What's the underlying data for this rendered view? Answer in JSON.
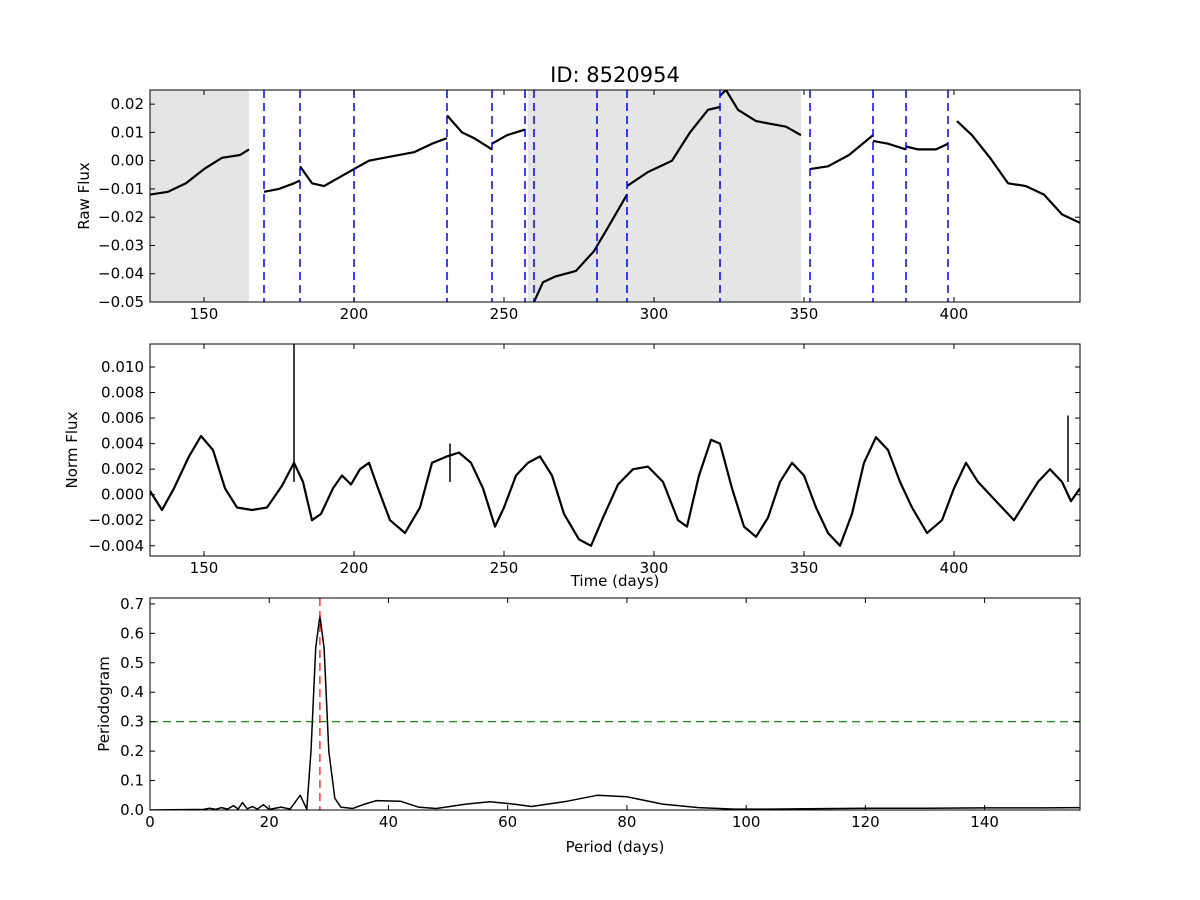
{
  "figure": {
    "title": "ID: 8520954"
  },
  "chart_data": [
    {
      "type": "line",
      "ylabel": "Raw Flux",
      "xlabel": "",
      "xlim": [
        132,
        442
      ],
      "ylim": [
        -0.05,
        0.025
      ],
      "xticks": [
        150,
        200,
        250,
        300,
        350,
        400
      ],
      "yticks": [
        -0.05,
        -0.04,
        -0.03,
        -0.02,
        -0.01,
        0.0,
        0.01,
        0.02
      ],
      "ytick_labels": [
        "−0.05",
        "−0.04",
        "−0.03",
        "−0.02",
        "−0.01",
        "0.00",
        "0.01",
        "0.02"
      ],
      "shaded_regions": [
        [
          132,
          165
        ],
        [
          258,
          349
        ]
      ],
      "break_lines": [
        170,
        182,
        200,
        231,
        246,
        257,
        260,
        281,
        291,
        322,
        352,
        373,
        384,
        398
      ],
      "series": [
        {
          "segments": [
            [
              [
                132,
                -0.012
              ],
              [
                138,
                -0.011
              ],
              [
                144,
                -0.008
              ],
              [
                150,
                -0.003
              ],
              [
                156,
                0.001
              ],
              [
                162,
                0.002
              ],
              [
                165,
                0.004
              ]
            ],
            [
              [
                170,
                -0.011
              ],
              [
                175,
                -0.01
              ],
              [
                180,
                -0.008
              ],
              [
                182,
                -0.007
              ]
            ],
            [
              [
                182,
                -0.002
              ],
              [
                186,
                -0.008
              ],
              [
                190,
                -0.009
              ],
              [
                200,
                -0.003
              ],
              [
                205,
                0.0
              ],
              [
                210,
                0.001
              ],
              [
                220,
                0.003
              ],
              [
                226,
                0.006
              ],
              [
                231,
                0.008
              ]
            ],
            [
              [
                231,
                0.016
              ],
              [
                236,
                0.01
              ],
              [
                240,
                0.008
              ],
              [
                246,
                0.004
              ]
            ],
            [
              [
                246,
                0.006
              ],
              [
                251,
                0.009
              ],
              [
                257,
                0.011
              ]
            ],
            [
              [
                260,
                -0.05
              ],
              [
                263,
                -0.043
              ],
              [
                267,
                -0.041
              ],
              [
                274,
                -0.039
              ],
              [
                280,
                -0.032
              ],
              [
                285,
                -0.023
              ],
              [
                291,
                -0.012
              ]
            ],
            [
              [
                291,
                -0.009
              ],
              [
                298,
                -0.004
              ],
              [
                306,
                0.0
              ],
              [
                312,
                0.01
              ],
              [
                318,
                0.018
              ],
              [
                322,
                0.019
              ]
            ],
            [
              [
                322,
                0.023
              ],
              [
                324,
                0.025
              ],
              [
                328,
                0.018
              ],
              [
                334,
                0.014
              ],
              [
                344,
                0.012
              ],
              [
                349,
                0.009
              ]
            ],
            [
              [
                352,
                -0.003
              ],
              [
                358,
                -0.002
              ],
              [
                365,
                0.002
              ],
              [
                373,
                0.009
              ]
            ],
            [
              [
                373,
                0.007
              ],
              [
                378,
                0.006
              ],
              [
                384,
                0.004
              ]
            ],
            [
              [
                384,
                0.005
              ],
              [
                388,
                0.004
              ],
              [
                394,
                0.004
              ],
              [
                398,
                0.006
              ]
            ],
            [
              [
                401,
                0.014
              ],
              [
                406,
                0.009
              ],
              [
                412,
                0.001
              ],
              [
                418,
                -0.008
              ],
              [
                424,
                -0.009
              ],
              [
                430,
                -0.012
              ],
              [
                436,
                -0.019
              ],
              [
                442,
                -0.022
              ]
            ]
          ]
        }
      ]
    },
    {
      "type": "line",
      "ylabel": "Norm Flux",
      "xlabel": "Time (days)",
      "xlim": [
        132,
        442
      ],
      "ylim": [
        -0.0048,
        0.0118
      ],
      "xticks": [
        150,
        200,
        250,
        300,
        350,
        400
      ],
      "yticks": [
        -0.004,
        -0.002,
        0.0,
        0.002,
        0.004,
        0.006,
        0.008,
        0.01
      ],
      "ytick_labels": [
        "−0.004",
        "−0.002",
        "0.000",
        "0.002",
        "0.004",
        "0.006",
        "0.008",
        "0.010"
      ],
      "series": [
        {
          "points": [
            [
              132,
              0.0003
            ],
            [
              136,
              -0.0012
            ],
            [
              140,
              0.0005
            ],
            [
              145,
              0.003
            ],
            [
              149,
              0.0046
            ],
            [
              153,
              0.0035
            ],
            [
              157,
              0.0005
            ],
            [
              161,
              -0.001
            ],
            [
              166,
              -0.0012
            ],
            [
              171,
              -0.001
            ],
            [
              176,
              0.0007
            ],
            [
              180,
              0.0025
            ],
            [
              183,
              0.001
            ],
            [
              186,
              -0.002
            ],
            [
              189,
              -0.0015
            ],
            [
              193,
              0.0005
            ],
            [
              196,
              0.0015
            ],
            [
              199,
              0.0008
            ],
            [
              202,
              0.002
            ],
            [
              205,
              0.0025
            ],
            [
              208,
              0.0005
            ],
            [
              212,
              -0.002
            ],
            [
              217,
              -0.003
            ],
            [
              222,
              -0.001
            ],
            [
              226,
              0.0025
            ],
            [
              231,
              0.003
            ],
            [
              235,
              0.0033
            ],
            [
              239,
              0.0025
            ],
            [
              243,
              0.0005
            ],
            [
              247,
              -0.0025
            ],
            [
              250,
              -0.001
            ],
            [
              254,
              0.0015
            ],
            [
              258,
              0.0025
            ],
            [
              262,
              0.003
            ],
            [
              266,
              0.0015
            ],
            [
              270,
              -0.0015
            ],
            [
              275,
              -0.0035
            ],
            [
              279,
              -0.004
            ],
            [
              283,
              -0.0018
            ],
            [
              288,
              0.0008
            ],
            [
              293,
              0.002
            ],
            [
              298,
              0.0022
            ],
            [
              303,
              0.001
            ],
            [
              308,
              -0.002
            ],
            [
              311,
              -0.0025
            ],
            [
              315,
              0.0015
            ],
            [
              319,
              0.0043
            ],
            [
              322,
              0.004
            ],
            [
              326,
              0.0005
            ],
            [
              330,
              -0.0025
            ],
            [
              334,
              -0.0033
            ],
            [
              338,
              -0.0018
            ],
            [
              342,
              0.001
            ],
            [
              346,
              0.0025
            ],
            [
              350,
              0.0015
            ],
            [
              354,
              -0.001
            ],
            [
              358,
              -0.003
            ],
            [
              362,
              -0.004
            ],
            [
              366,
              -0.0015
            ],
            [
              370,
              0.0025
            ],
            [
              374,
              0.0045
            ],
            [
              378,
              0.0035
            ],
            [
              382,
              0.001
            ],
            [
              386,
              -0.001
            ],
            [
              391,
              -0.003
            ],
            [
              396,
              -0.002
            ],
            [
              400,
              0.0005
            ],
            [
              404,
              0.0025
            ],
            [
              408,
              0.001
            ],
            [
              412,
              0.0
            ],
            [
              416,
              -0.001
            ],
            [
              420,
              -0.002
            ],
            [
              424,
              -0.0005
            ],
            [
              428,
              0.001
            ],
            [
              432,
              0.002
            ],
            [
              436,
              0.001
            ],
            [
              439,
              -0.0005
            ],
            [
              442,
              0.0005
            ]
          ]
        }
      ],
      "spikes": [
        [
          180,
          0.0118
        ],
        [
          232,
          0.004
        ],
        [
          438,
          0.0062
        ]
      ]
    },
    {
      "type": "line",
      "ylabel": "Periodogram",
      "xlabel": "Period (days)",
      "xlim": [
        0,
        156
      ],
      "ylim": [
        0,
        0.72
      ],
      "xticks": [
        0,
        20,
        40,
        60,
        80,
        100,
        120,
        140
      ],
      "yticks": [
        0.0,
        0.1,
        0.2,
        0.3,
        0.4,
        0.5,
        0.6,
        0.7
      ],
      "ytick_labels": [
        "0.0",
        "0.1",
        "0.2",
        "0.3",
        "0.4",
        "0.5",
        "0.6",
        "0.7"
      ],
      "peak_period": 28.5,
      "threshold": 0.3,
      "series": [
        {
          "points": [
            [
              0,
              0.0
            ],
            [
              9,
              0.002
            ],
            [
              10,
              0.006
            ],
            [
              11,
              0.002
            ],
            [
              12,
              0.008
            ],
            [
              13,
              0.003
            ],
            [
              14,
              0.015
            ],
            [
              14.8,
              0.003
            ],
            [
              15.5,
              0.025
            ],
            [
              16.3,
              0.004
            ],
            [
              17.2,
              0.012
            ],
            [
              18,
              0.003
            ],
            [
              19,
              0.018
            ],
            [
              20,
              0.002
            ],
            [
              22,
              0.01
            ],
            [
              23.5,
              0.003
            ],
            [
              25.2,
              0.05
            ],
            [
              26.3,
              0.003
            ],
            [
              27,
              0.2
            ],
            [
              27.8,
              0.55
            ],
            [
              28.5,
              0.66
            ],
            [
              29.2,
              0.55
            ],
            [
              30,
              0.2
            ],
            [
              31,
              0.04
            ],
            [
              32,
              0.01
            ],
            [
              34,
              0.005
            ],
            [
              36,
              0.02
            ],
            [
              38,
              0.032
            ],
            [
              42,
              0.03
            ],
            [
              45,
              0.01
            ],
            [
              48,
              0.005
            ],
            [
              53,
              0.02
            ],
            [
              57,
              0.028
            ],
            [
              61,
              0.02
            ],
            [
              64,
              0.012
            ],
            [
              70,
              0.03
            ],
            [
              75,
              0.05
            ],
            [
              80,
              0.045
            ],
            [
              86,
              0.02
            ],
            [
              92,
              0.008
            ],
            [
              98,
              0.003
            ],
            [
              104,
              0.003
            ],
            [
              110,
              0.004
            ],
            [
              120,
              0.006
            ],
            [
              130,
              0.006
            ],
            [
              140,
              0.007
            ],
            [
              150,
              0.007
            ],
            [
              156,
              0.008
            ]
          ]
        }
      ]
    }
  ]
}
